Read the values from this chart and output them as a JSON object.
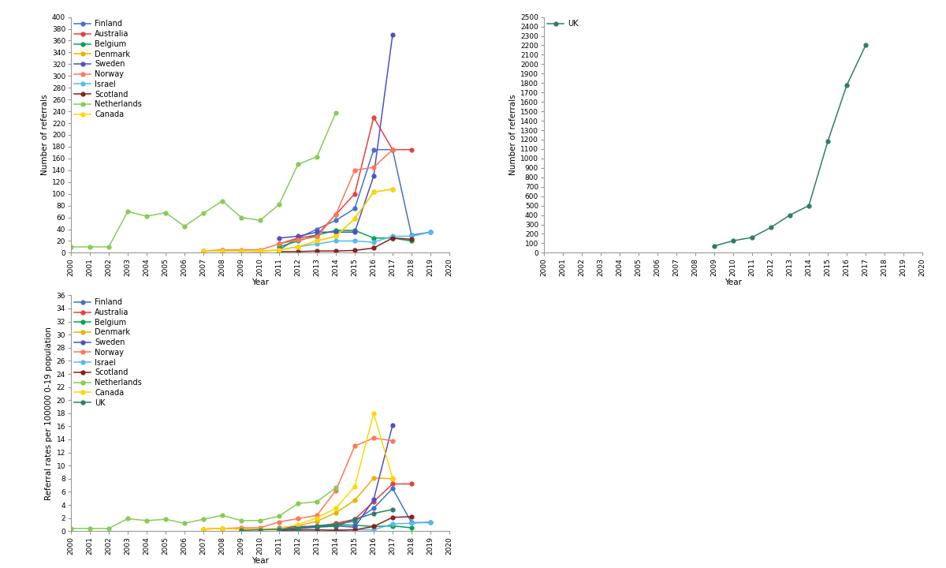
{
  "colors": {
    "Finland": "#4472C4",
    "Australia": "#E84040",
    "Belgium": "#00A550",
    "Denmark": "#E8B400",
    "Sweden": "#5050C0",
    "Norway": "#FF7755",
    "Israel": "#55BBEE",
    "Scotland": "#8B2020",
    "Netherlands": "#88CC55",
    "Canada": "#FFD700",
    "UK": "#2E7D6B"
  },
  "plot1": {
    "ylabel": "Number of referrals",
    "xlabel": "Year",
    "ylim": [
      0,
      400
    ],
    "yticks": [
      0,
      20,
      40,
      60,
      80,
      100,
      120,
      140,
      160,
      180,
      200,
      220,
      240,
      260,
      280,
      300,
      320,
      340,
      360,
      380,
      400
    ],
    "xlim": [
      2000,
      2020
    ],
    "data": {
      "Finland": {
        "years": [
          2011,
          2012,
          2013,
          2014,
          2015,
          2016,
          2017,
          2018,
          2019
        ],
        "values": [
          5,
          25,
          40,
          55,
          75,
          175,
          175,
          30,
          35
        ]
      },
      "Australia": {
        "years": [
          2011,
          2012,
          2013,
          2014,
          2015,
          2016,
          2017,
          2018
        ],
        "values": [
          15,
          25,
          30,
          65,
          100,
          230,
          175,
          175
        ]
      },
      "Belgium": {
        "years": [
          2011,
          2012,
          2013,
          2014,
          2015,
          2016,
          2017,
          2018
        ],
        "values": [
          10,
          20,
          30,
          38,
          38,
          25,
          25,
          20
        ]
      },
      "Denmark": {
        "years": [
          2007,
          2008,
          2009,
          2010,
          2011,
          2012,
          2013,
          2014,
          2015,
          2016,
          2017
        ],
        "values": [
          3,
          5,
          3,
          2,
          5,
          10,
          20,
          28,
          58,
          103,
          108
        ]
      },
      "Sweden": {
        "years": [
          2011,
          2012,
          2013,
          2014,
          2015,
          2016,
          2017
        ],
        "values": [
          25,
          28,
          35,
          35,
          35,
          130,
          370
        ]
      },
      "Norway": {
        "years": [
          2007,
          2008,
          2009,
          2010,
          2011,
          2012,
          2013,
          2014,
          2015,
          2016,
          2017
        ],
        "values": [
          3,
          4,
          5,
          5,
          15,
          22,
          27,
          65,
          140,
          145,
          175
        ]
      },
      "Israel": {
        "years": [
          2011,
          2012,
          2013,
          2014,
          2015,
          2016,
          2017,
          2018,
          2019
        ],
        "values": [
          5,
          10,
          15,
          20,
          20,
          18,
          28,
          28,
          35
        ]
      },
      "Scotland": {
        "years": [
          2011,
          2012,
          2013,
          2014,
          2015,
          2016,
          2017,
          2018
        ],
        "values": [
          2,
          2,
          3,
          3,
          4,
          8,
          25,
          23
        ]
      },
      "Netherlands": {
        "years": [
          2000,
          2001,
          2002,
          2003,
          2004,
          2005,
          2006,
          2007,
          2008,
          2009,
          2010,
          2011,
          2012,
          2013,
          2014
        ],
        "values": [
          10,
          10,
          10,
          70,
          62,
          68,
          45,
          67,
          88,
          60,
          55,
          82,
          150,
          163,
          238
        ]
      },
      "Canada": {
        "years": [
          2007,
          2008,
          2009,
          2010,
          2011,
          2012,
          2013,
          2014,
          2015,
          2016,
          2017
        ],
        "values": [
          3,
          3,
          3,
          3,
          5,
          10,
          20,
          28,
          58,
          103,
          108
        ]
      }
    },
    "legend_order": [
      "Finland",
      "Australia",
      "Belgium",
      "Denmark",
      "Sweden",
      "Norway",
      "Israel",
      "Scotland",
      "Netherlands",
      "Canada"
    ]
  },
  "plot2": {
    "ylabel": "Number of referrals",
    "xlabel": "Year",
    "ylim": [
      0,
      2500
    ],
    "yticks": [
      0,
      100,
      200,
      300,
      400,
      500,
      600,
      700,
      800,
      900,
      1000,
      1100,
      1200,
      1300,
      1400,
      1500,
      1600,
      1700,
      1800,
      1900,
      2000,
      2100,
      2200,
      2300,
      2400,
      2500
    ],
    "xlim": [
      2000,
      2020
    ],
    "data": {
      "UK": {
        "years": [
          2009,
          2010,
          2011,
          2012,
          2013,
          2014,
          2015,
          2016,
          2017
        ],
        "values": [
          72,
          127,
          163,
          270,
          400,
          500,
          1180,
          1775,
          2200
        ]
      }
    },
    "legend_order": [
      "UK"
    ]
  },
  "plot3": {
    "ylabel": "Referral rates per 100000 0-19 population",
    "xlabel": "Year",
    "ylim": [
      0,
      36
    ],
    "yticks": [
      0,
      2,
      4,
      6,
      8,
      10,
      12,
      14,
      16,
      18,
      20,
      22,
      24,
      26,
      28,
      30,
      32,
      34,
      36
    ],
    "xlim": [
      2000,
      2020
    ],
    "data": {
      "Finland": {
        "years": [
          2011,
          2012,
          2013,
          2014,
          2015,
          2016,
          2017,
          2018,
          2019
        ],
        "values": [
          0.1,
          0.5,
          0.8,
          1.1,
          1.5,
          3.5,
          6.5,
          1.3,
          1.3
        ]
      },
      "Australia": {
        "years": [
          2011,
          2012,
          2013,
          2014,
          2015,
          2016,
          2017,
          2018
        ],
        "values": [
          0.3,
          0.5,
          0.6,
          1.2,
          1.8,
          4.5,
          7.2,
          7.2
        ]
      },
      "Belgium": {
        "years": [
          2011,
          2012,
          2013,
          2014,
          2015,
          2016,
          2017,
          2018
        ],
        "values": [
          0.3,
          0.5,
          0.8,
          1.0,
          0.9,
          0.7,
          0.8,
          0.5
        ]
      },
      "Denmark": {
        "years": [
          2007,
          2008,
          2009,
          2010,
          2011,
          2012,
          2013,
          2014,
          2015,
          2016,
          2017
        ],
        "values": [
          0.3,
          0.4,
          0.3,
          0.2,
          0.4,
          0.8,
          1.5,
          2.8,
          4.7,
          8.1,
          8.0
        ]
      },
      "Sweden": {
        "years": [
          2011,
          2012,
          2013,
          2014,
          2015,
          2016,
          2017
        ],
        "values": [
          0.5,
          0.7,
          0.7,
          0.8,
          0.6,
          4.8,
          16.2
        ]
      },
      "Norway": {
        "years": [
          2007,
          2008,
          2009,
          2010,
          2011,
          2012,
          2013,
          2014,
          2015,
          2016,
          2017
        ],
        "values": [
          0.3,
          0.4,
          0.5,
          0.5,
          1.4,
          1.9,
          2.4,
          6.2,
          13.0,
          14.2,
          13.8
        ]
      },
      "Israel": {
        "years": [
          2011,
          2012,
          2013,
          2014,
          2015,
          2016,
          2017,
          2018,
          2019
        ],
        "values": [
          0.03,
          0.1,
          0.15,
          0.18,
          0.2,
          0.2,
          1.1,
          1.2,
          1.4
        ]
      },
      "Scotland": {
        "years": [
          2011,
          2012,
          2013,
          2014,
          2015,
          2016,
          2017,
          2018
        ],
        "values": [
          0.1,
          0.2,
          0.2,
          0.1,
          0.2,
          0.7,
          2.1,
          2.2
        ]
      },
      "Netherlands": {
        "years": [
          2000,
          2001,
          2002,
          2003,
          2004,
          2005,
          2006,
          2007,
          2008,
          2009,
          2010,
          2011,
          2012,
          2013,
          2014
        ],
        "values": [
          0.4,
          0.4,
          0.4,
          1.9,
          1.6,
          1.8,
          1.2,
          1.8,
          2.4,
          1.6,
          1.6,
          2.3,
          4.2,
          4.5,
          6.6
        ]
      },
      "Canada": {
        "years": [
          2007,
          2008,
          2009,
          2010,
          2011,
          2012,
          2013,
          2014,
          2015,
          2016,
          2017
        ],
        "values": [
          0.3,
          0.4,
          0.3,
          0.3,
          0.4,
          1.0,
          2.0,
          3.5,
          6.8,
          18.0,
          8.1
        ]
      },
      "UK": {
        "years": [
          2009,
          2010,
          2011,
          2012,
          2013,
          2014,
          2015,
          2016,
          2017
        ],
        "values": [
          0.1,
          0.2,
          0.25,
          0.4,
          0.6,
          0.75,
          1.8,
          2.7,
          3.3
        ]
      }
    },
    "legend_order": [
      "Finland",
      "Australia",
      "Belgium",
      "Denmark",
      "Sweden",
      "Norway",
      "Israel",
      "Scotland",
      "Netherlands",
      "Canada",
      "UK"
    ]
  },
  "marker": "o",
  "markersize": 3.5,
  "linewidth": 1.1,
  "background_color": "#FFFFFF",
  "font_size": 7.5,
  "tick_label_size": 6.5,
  "legend_fontsize": 7,
  "legend_labelspacing": 0.28,
  "spine_color": "#999999"
}
